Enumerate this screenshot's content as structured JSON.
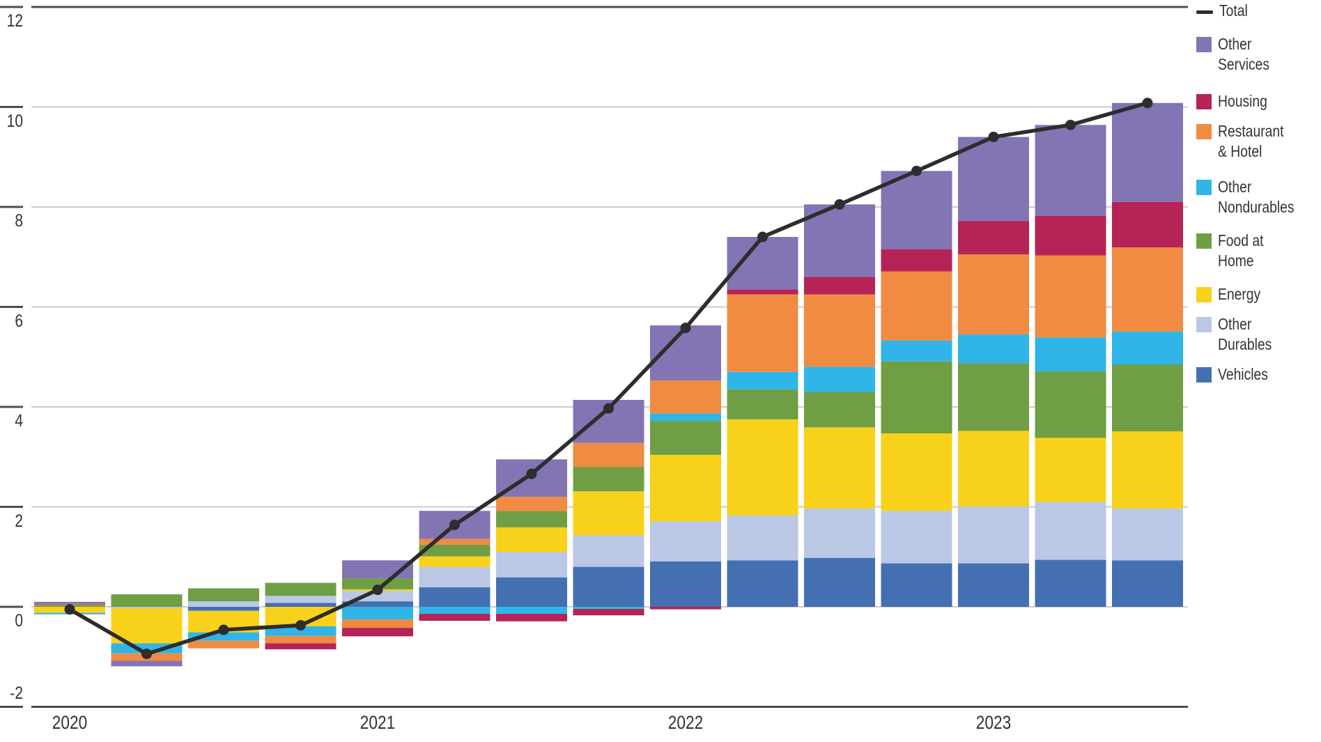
{
  "chart_data": {
    "type": "stacked_bar_with_line",
    "title": "",
    "categories": [
      "2020 Q1",
      "2020 Q2",
      "2020 Q3",
      "2020 Q4",
      "2021 Q1",
      "2021 Q2",
      "2021 Q3",
      "2021 Q4",
      "2022 Q1",
      "2022 Q2",
      "2022 Q3",
      "2022 Q4",
      "2023 Q1",
      "2023 Q2",
      "2023 Q3"
    ],
    "x_year_labels": [
      {
        "label": "2020",
        "index": 0
      },
      {
        "label": "2021",
        "index": 4
      },
      {
        "label": "2022",
        "index": 8
      },
      {
        "label": "2023",
        "index": 12
      }
    ],
    "y_ticks": [
      "12",
      "10",
      "8",
      "6",
      "4",
      "2",
      "0",
      "-2"
    ],
    "ylim": [
      -2,
      12
    ],
    "grid": "horizontal-light",
    "legend_position": "right",
    "stack_order_note": "series listed bottom-to-top of the positive stack",
    "series": [
      {
        "name": "Vehicles",
        "color": "#4470B2",
        "values": [
          0,
          0,
          -0.08,
          0.08,
          0.11,
          0.39,
          0.59,
          0.8,
          0.91,
          0.93,
          0.98,
          0.87,
          0.87,
          0.94,
          0.93
        ]
      },
      {
        "name": "Other Durables",
        "color": "#BAC8E5",
        "values": [
          0,
          -0.03,
          0.11,
          0.14,
          0.21,
          0.41,
          0.51,
          0.63,
          0.8,
          0.9,
          0.99,
          1.05,
          1.14,
          1.16,
          1.04
        ]
      },
      {
        "name": "Energy",
        "color": "#F8D21A",
        "values": [
          -0.12,
          -0.7,
          -0.43,
          -0.39,
          0.03,
          0.21,
          0.49,
          0.88,
          1.33,
          1.92,
          1.62,
          1.55,
          1.51,
          1.28,
          1.54
        ]
      },
      {
        "name": "Food at Home",
        "color": "#6F9E45",
        "values": [
          0.04,
          0.25,
          0.26,
          0.26,
          0.22,
          0.23,
          0.33,
          0.49,
          0.68,
          0.6,
          0.71,
          1.44,
          1.35,
          1.33,
          1.34
        ]
      },
      {
        "name": "Other Nondurables",
        "color": "#2FB5E8",
        "values": [
          -0.03,
          -0.2,
          -0.17,
          -0.19,
          -0.25,
          -0.14,
          -0.14,
          -0.04,
          0.15,
          0.35,
          0.5,
          0.42,
          0.58,
          0.68,
          0.66
        ]
      },
      {
        "name": "Restaurant & Hotel",
        "color": "#F08B41",
        "values": [
          0.01,
          -0.15,
          -0.15,
          -0.15,
          -0.17,
          0.12,
          0.28,
          0.48,
          0.66,
          1.55,
          1.45,
          1.38,
          1.6,
          1.64,
          1.68
        ]
      },
      {
        "name": "Housing",
        "color": "#B52357",
        "values": [
          0.01,
          0,
          0,
          -0.12,
          -0.17,
          -0.14,
          -0.15,
          -0.13,
          -0.05,
          0.1,
          0.35,
          0.44,
          0.67,
          0.79,
          0.91
        ]
      },
      {
        "name": "Other Services",
        "color": "#8374B4",
        "values": [
          0.04,
          -0.11,
          0,
          0,
          0.36,
          0.56,
          0.75,
          0.86,
          1.1,
          1.05,
          1.45,
          1.57,
          1.68,
          1.82,
          1.98
        ]
      }
    ],
    "line_series": {
      "name": "Total",
      "color": "#2D2D2D",
      "values": [
        -0.05,
        -0.94,
        -0.46,
        -0.37,
        0.34,
        1.64,
        2.66,
        3.97,
        5.58,
        7.4,
        8.05,
        8.72,
        9.4,
        9.64,
        10.08
      ]
    }
  },
  "legend": {
    "items": [
      {
        "label": "Total",
        "lines": [
          "Total"
        ],
        "type": "line",
        "color": "#2D2D2D"
      },
      {
        "label": "Other Services",
        "lines": [
          "Other",
          "Services"
        ],
        "type": "swatch",
        "color": "#8374B4"
      },
      {
        "label": "Housing",
        "lines": [
          "Housing"
        ],
        "type": "swatch",
        "color": "#B52357"
      },
      {
        "label": "Restaurant & Hotel",
        "lines": [
          "Restaurant",
          "& Hotel"
        ],
        "type": "swatch",
        "color": "#F08B41"
      },
      {
        "label": "Other Nondurables",
        "lines": [
          "Other",
          "Nondurables"
        ],
        "type": "swatch",
        "color": "#2FB5E8"
      },
      {
        "label": "Food at Home",
        "lines": [
          "Food at",
          "Home"
        ],
        "type": "swatch",
        "color": "#6F9E45"
      },
      {
        "label": "Energy",
        "lines": [
          "Energy"
        ],
        "type": "swatch",
        "color": "#F8D21A"
      },
      {
        "label": "Other Durables",
        "lines": [
          "Other",
          "Durables"
        ],
        "type": "swatch",
        "color": "#BAC8E5"
      },
      {
        "label": "Vehicles",
        "lines": [
          "Vehicles"
        ],
        "type": "swatch",
        "color": "#4470B2"
      }
    ]
  },
  "style_colors": {
    "grid_light": "#CCCCCC",
    "axis_dark": "#4D4D4D",
    "text": "#333333",
    "background": "#FFFFFF"
  }
}
